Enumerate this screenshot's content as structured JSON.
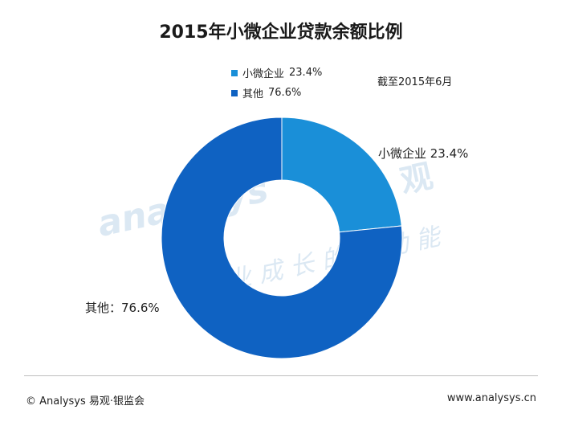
{
  "chart_data": {
    "type": "pie",
    "title": "2015年小微企业贷款余额比例",
    "note": "截至2015年6月",
    "slices": [
      {
        "name": "小微企业",
        "value": 23.4,
        "value_label": "23.4%",
        "slice_label": "小微企业 23.4%",
        "color": "#1a8fd8"
      },
      {
        "name": "其他",
        "value": 76.6,
        "value_label": "76.6%",
        "slice_label": "其他：76.6%",
        "color": "#0f62c2"
      }
    ],
    "legend_position": "top"
  },
  "footer": {
    "left": "© Analysys 易观·银监会",
    "right": "www.analysys.cn"
  },
  "watermark": {
    "logo_text": "analysys",
    "brand_char": "观",
    "slogan": "企业成长的新动能"
  }
}
